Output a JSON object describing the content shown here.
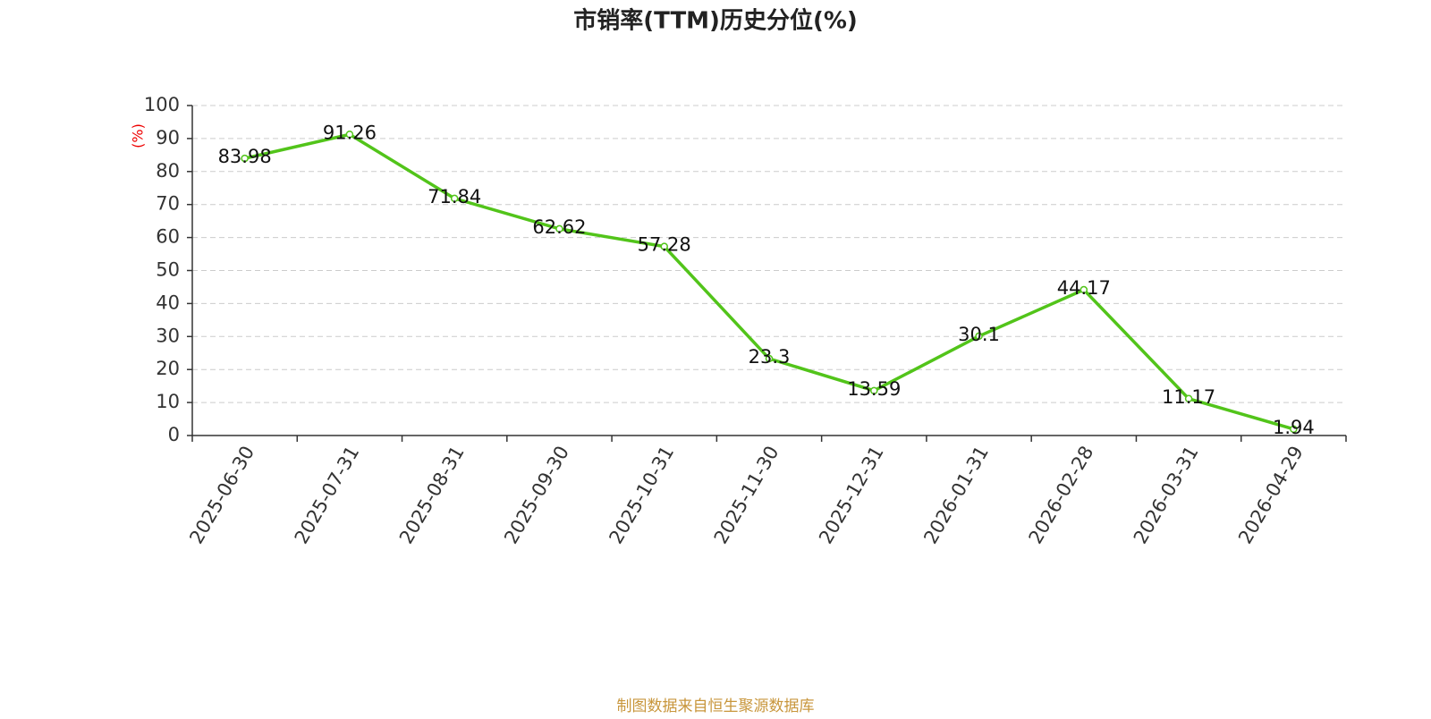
{
  "chart_data": {
    "type": "line",
    "title": "市销率(TTM)历史分位(%)",
    "y_label": "(%)",
    "categories": [
      "2025-06-30",
      "2025-07-31",
      "2025-08-31",
      "2025-09-30",
      "2025-10-31",
      "2025-11-30",
      "2025-12-31",
      "2026-01-31",
      "2026-02-28",
      "2026-03-31",
      "2026-04-29"
    ],
    "series": [
      {
        "name": "市销率(TTM)历史分位",
        "color": "#52c41a",
        "values": [
          83.98,
          91.26,
          71.84,
          62.62,
          57.28,
          23.3,
          13.59,
          30.1,
          44.17,
          11.17,
          1.94
        ]
      }
    ],
    "ylim": [
      0,
      100
    ],
    "yticks": [
      0,
      10,
      20,
      30,
      40,
      50,
      60,
      70,
      80,
      90,
      100
    ],
    "grid": true
  },
  "source": "制图数据来自恒生聚源数据库"
}
